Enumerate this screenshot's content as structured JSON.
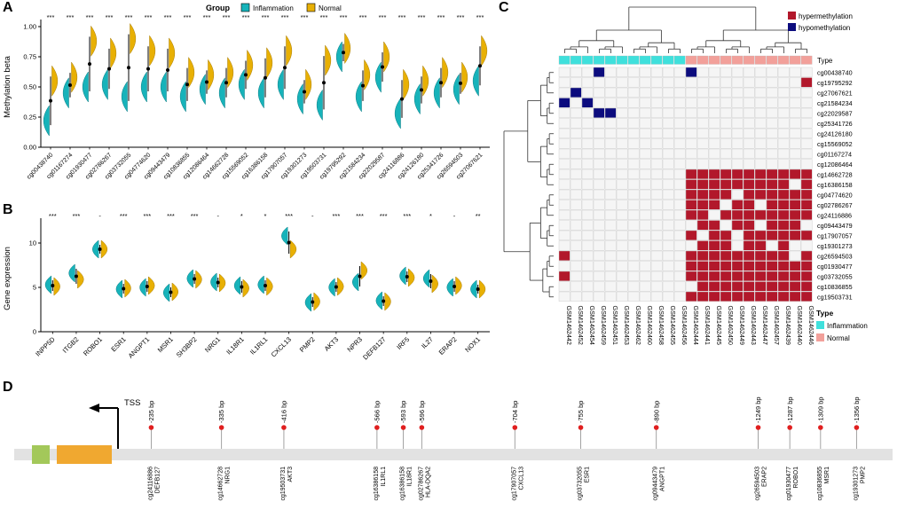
{
  "panels": {
    "a": "A",
    "b": "B",
    "c": "C",
    "d": "D"
  },
  "colors": {
    "inflammation": "#17b3ba",
    "inflammation_edge": "#0b7d85",
    "normal": "#e8b004",
    "normal_edge": "#a87c06",
    "hypermethylation": "#b2182b",
    "hypomethylation": "#0c0c7e",
    "type_inflammation": "#3fe0dc",
    "type_normal": "#f2a09a",
    "heatmap_empty": "#f5f5f5",
    "heatmap_grid": "#c8c8c8",
    "lollipop": "#e01f1f",
    "track": "#e2e2e2",
    "exon_green": "#a3c85a",
    "exon_orange": "#f0a830"
  },
  "chart_data": [
    {
      "panel": "A",
      "type": "violin",
      "ylabel": "Methylation beta",
      "ylim": [
        0,
        1
      ],
      "yticks": [
        "0.00",
        "0.25",
        "0.50",
        "0.75",
        "1.00"
      ],
      "legend": {
        "title": "Group",
        "entries": [
          "Inflammation",
          "Normal"
        ]
      },
      "categories": [
        "cg00438740",
        "cg01167274",
        "cg01930477",
        "cg02786267",
        "cg03732055",
        "cg04774620",
        "cg09443479",
        "cg10836855",
        "cg12086464",
        "cg14662728",
        "cg15569052",
        "cg16386158",
        "cg17907057",
        "cg19301273",
        "cg19503731",
        "cg19795292",
        "cg21584234",
        "cg22029587",
        "cg24116886",
        "cg24126180",
        "cg25341726",
        "cg26594503",
        "cg27067621"
      ],
      "significance": [
        "***",
        "***",
        "***",
        "***",
        "***",
        "***",
        "***",
        "***",
        "***",
        "***",
        "***",
        "***",
        "***",
        "***",
        "***",
        "***",
        "***",
        "***",
        "***",
        "***",
        "***",
        "***",
        "***"
      ],
      "series": [
        {
          "name": "Inflammation",
          "means": [
            0.22,
            0.45,
            0.5,
            0.52,
            0.42,
            0.5,
            0.5,
            0.42,
            0.48,
            0.45,
            0.52,
            0.45,
            0.52,
            0.4,
            0.35,
            0.75,
            0.42,
            0.58,
            0.28,
            0.4,
            0.45,
            0.48,
            0.55
          ]
        },
        {
          "name": "Normal",
          "means": [
            0.55,
            0.58,
            0.88,
            0.78,
            0.9,
            0.8,
            0.78,
            0.62,
            0.6,
            0.62,
            0.68,
            0.7,
            0.8,
            0.52,
            0.72,
            0.82,
            0.6,
            0.75,
            0.52,
            0.55,
            0.62,
            0.58,
            0.8
          ]
        }
      ]
    },
    {
      "panel": "B",
      "type": "violin",
      "ylabel": "Gene expression",
      "ylim": [
        0,
        12
      ],
      "yticks": [
        "0",
        "5",
        "10"
      ],
      "categories": [
        "INPP5D",
        "ITGB2",
        "ROBO1",
        "ESR1",
        "ANGPT1",
        "MSR1",
        "SH3BP2",
        "NRG1",
        "IL18R1",
        "IL1RL1",
        "CXCL13",
        "PMP2",
        "AKT3",
        "NPR3",
        "DEFB127",
        "IRF5",
        "IL27",
        "ERAP2",
        "NOX1"
      ],
      "significance": [
        "***",
        "***",
        "-",
        "***",
        "***",
        "***",
        "***",
        "-",
        "*",
        "*",
        "***",
        "-",
        "***",
        "***",
        "***",
        "***",
        "*",
        "-",
        "**"
      ],
      "series": [
        {
          "name": "Inflammation",
          "means": [
            5.3,
            6.6,
            9.3,
            4.8,
            5.0,
            4.4,
            6.0,
            5.6,
            5.2,
            5.3,
            10.8,
            3.3,
            5.0,
            5.6,
            3.5,
            6.3,
            6.0,
            5.0,
            4.8
          ]
        },
        {
          "name": "Normal",
          "means": [
            5.1,
            5.9,
            9.3,
            4.9,
            5.2,
            4.5,
            5.9,
            5.5,
            4.9,
            5.1,
            9.3,
            3.4,
            5.1,
            6.9,
            3.4,
            6.1,
            5.4,
            5.2,
            4.8
          ]
        }
      ]
    },
    {
      "panel": "C",
      "type": "heatmap",
      "legend": [
        "hypermethylation",
        "hypomethylation"
      ],
      "type_legend": {
        "title": "Type",
        "entries": [
          "Inflammation",
          "Normal"
        ]
      },
      "rows": [
        "cg00438740",
        "cg19795292",
        "cg27067621",
        "cg21584234",
        "cg22029587",
        "cg25341726",
        "cg24126180",
        "cg15569052",
        "cg01167274",
        "cg12086464",
        "cg14662728",
        "cg16386158",
        "cg04774620",
        "cg02786267",
        "cg24116886",
        "cg09443479",
        "cg17907057",
        "cg19301273",
        "cg26594503",
        "cg01930477",
        "cg03732055",
        "cg10836855",
        "cg19503731"
      ],
      "cols": [
        "GSM1462442",
        "GSM1462452",
        "GSM1462454",
        "GSM1462459",
        "GSM1462451",
        "GSM1462453",
        "GSM1462462",
        "GSM1462460",
        "GSM1462458",
        "GSM1462455",
        "GSM1462456",
        "GSM1462444",
        "GSM1462441",
        "GSM1462445",
        "GSM1462450",
        "GSM1462449",
        "GSM1462443",
        "GSM1462447",
        "GSM1462457",
        "GSM1462439",
        "GSM1462440",
        "GSM1462446"
      ],
      "col_types": "IIIIIIIIIIINNNNNNNNNNN",
      "cells": [
        "0002000000020000000000",
        "0000000000000000000001",
        "0200000000000000000000",
        "2020000000000000000000",
        "0002200000000000000000",
        "0000000000000000000000",
        "0000000000000000000000",
        "0000000000000000000000",
        "0000000000000000000000",
        "0000000000000000000000",
        "0000000000011111111111",
        "0000000000011111111101",
        "0000000000011110111111",
        "0000000000011101101111",
        "0000000000011011111111",
        "0000000000001101101110",
        "0000000000010110111111",
        "0000000000001110110100",
        "1000000000011111111101",
        "0000000000011111111111",
        "1000000000011111111111",
        "0000000000001111111111",
        "0000000000011111111111"
      ]
    },
    {
      "panel": "D",
      "type": "gene-track",
      "tss_label": "TSS",
      "sites": [
        {
          "bp": "-235 bp",
          "cg": "cg24116886",
          "gene": "DEFB127",
          "pos": 15.6
        },
        {
          "bp": "-335 bp",
          "cg": "cg14662728",
          "gene": "NRG1",
          "pos": 23.6
        },
        {
          "bp": "-416 bp",
          "cg": "cg19503731",
          "gene": "AKT3",
          "pos": 30.7
        },
        {
          "bp": "-566 bp",
          "cg": "cg16386158",
          "gene": "IL1RL1",
          "pos": 41.3
        },
        {
          "bp": "-593 bp",
          "cg": "cg16386158",
          "gene": "IL18R1",
          "pos": 44.3
        },
        {
          "bp": "-596 bp",
          "cg": "cg02786267",
          "gene": "HLA-DQA2",
          "pos": 46.4
        },
        {
          "bp": "-704 bp",
          "cg": "cg17907057",
          "gene": "CXCL13",
          "pos": 57.0
        },
        {
          "bp": "-755 bp",
          "cg": "cg03732055",
          "gene": "ESR1",
          "pos": 64.5
        },
        {
          "bp": "-890 bp",
          "cg": "cg09443479",
          "gene": "ANGPT1",
          "pos": 73.1
        },
        {
          "bp": "-1249 bp",
          "cg": "cg26594503",
          "gene": "ERAP2",
          "pos": 84.7
        },
        {
          "bp": "-1287 bp",
          "cg": "cg01930477",
          "gene": "ROBO1",
          "pos": 88.3
        },
        {
          "bp": "-1309 bp",
          "cg": "cg10836855",
          "gene": "MSR1",
          "pos": 91.8
        },
        {
          "bp": "-1356 bp",
          "cg": "cg19301273",
          "gene": "PMP2",
          "pos": 95.9
        }
      ]
    }
  ]
}
